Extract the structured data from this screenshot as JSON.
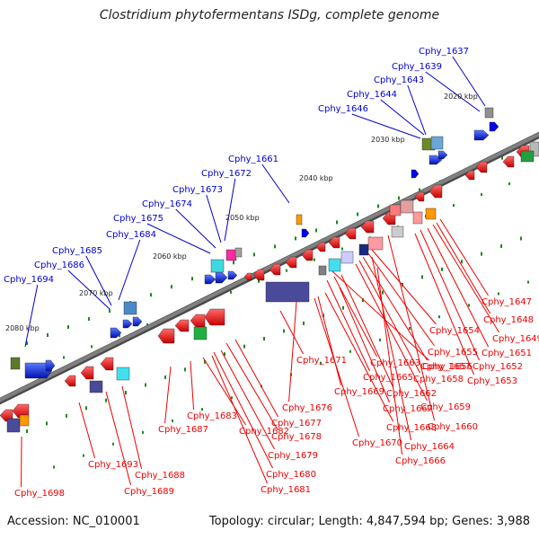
{
  "title": "Clostridium phytofermentans ISDg, complete genome",
  "footer": {
    "accession": "Accession: NC_010001",
    "summary": "Topology: circular; Length: 4,847,594 bp; Genes: 3,988"
  },
  "colors": {
    "backbone": "#808080",
    "forward_label": "#0000cc",
    "reverse_label": "#ee0000",
    "tick": "#1a8a1a"
  },
  "kbp_markers": [
    "2020 kbp",
    "2030 kbp",
    "2040 kbp",
    "2050 kbp",
    "2060 kbp",
    "2070 kbp",
    "2080 kbp"
  ],
  "upper_genes": [
    "Cphy_1637",
    "Cphy_1639",
    "Cphy_1643",
    "Cphy_1644",
    "Cphy_1646",
    "Cphy_1661",
    "Cphy_1672",
    "Cphy_1673",
    "Cphy_1674",
    "Cphy_1675",
    "Cphy_1684",
    "Cphy_1685",
    "Cphy_1686",
    "Cphy_1694"
  ],
  "lower_genes": [
    "Cphy_1647",
    "Cphy_1648",
    "Cphy_1649",
    "Cphy_1651",
    "Cphy_1652",
    "Cphy_1653",
    "Cphy_1654",
    "Cphy_1655",
    "Cphy_1656",
    "Cphy_1657",
    "Cphy_1658",
    "Cphy_1659",
    "Cphy_1660",
    "Cphy_1662",
    "Cphy_1663",
    "Cphy_1664",
    "Cphy_1665",
    "Cphy_1666",
    "Cphy_1667",
    "Cphy_1668",
    "Cphy_1669",
    "Cphy_1670",
    "Cphy_1671",
    "Cphy_1676",
    "Cphy_1677",
    "Cphy_1678",
    "Cphy_1679",
    "Cphy_1680",
    "Cphy_1681",
    "Cphy_1682",
    "Cphy_1683",
    "Cphy_1687",
    "Cphy_1688",
    "Cphy_1689",
    "Cphy_1693",
    "Cphy_1698"
  ]
}
